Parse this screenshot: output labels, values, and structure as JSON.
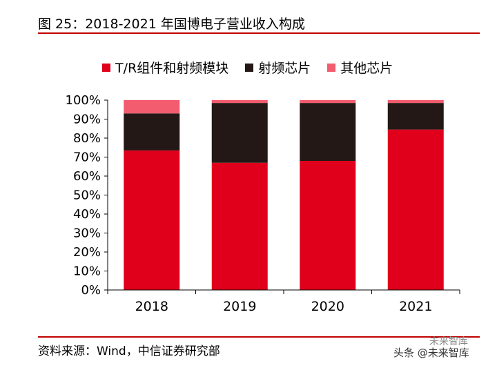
{
  "title": "图 25：2018-2021 年国博电子营业收入构成",
  "source": "资料来源：Wind，中信证券研究部",
  "watermark": "头条 @未来智库",
  "watermark_top": "未来智库",
  "colors": {
    "accent": "#c00000",
    "tr": "#e0001b",
    "rf": "#231815",
    "other": "#f25c6e"
  },
  "chart_data": {
    "type": "bar",
    "stacked": true,
    "title": "2018-2021 年国博电子营业收入构成",
    "categories": [
      "2018",
      "2019",
      "2020",
      "2021"
    ],
    "series": [
      {
        "name": "T/R组件和射频模块",
        "color": "#e0001b",
        "values": [
          73.5,
          67.0,
          68.0,
          84.5
        ]
      },
      {
        "name": "射频芯片",
        "color": "#231815",
        "values": [
          19.5,
          31.5,
          30.5,
          14.0
        ]
      },
      {
        "name": "其他芯片",
        "color": "#f25c6e",
        "values": [
          7.0,
          1.5,
          1.5,
          1.5
        ]
      }
    ],
    "yticks": [
      "0%",
      "10%",
      "20%",
      "30%",
      "40%",
      "50%",
      "60%",
      "70%",
      "80%",
      "90%",
      "100%"
    ],
    "ylim": [
      0,
      100
    ],
    "xlabel": "",
    "ylabel": "",
    "legend_position": "top",
    "grid": false
  }
}
